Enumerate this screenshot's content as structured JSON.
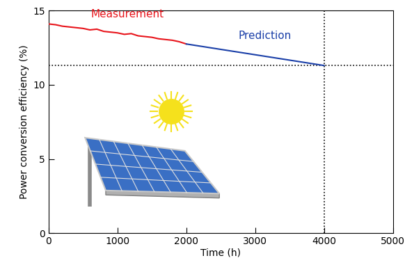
{
  "chart_data": {
    "type": "line",
    "x_label": "Time (h)",
    "y_label": "Power conversion efficiency (%)",
    "xlim": [
      0,
      5000
    ],
    "xticks": [
      0,
      1000,
      2000,
      3000,
      4000,
      5000
    ],
    "ylim": [
      0,
      15
    ],
    "yticks": [
      0,
      5,
      10,
      15
    ],
    "series": [
      {
        "name": "Measurement",
        "color": "#e8141b",
        "line_style": "solid",
        "x": [
          0,
          100,
          200,
          300,
          400,
          500,
          600,
          700,
          800,
          900,
          1000,
          1100,
          1200,
          1300,
          1400,
          1500,
          1600,
          1700,
          1800,
          1900,
          2000
        ],
        "values": [
          14.1,
          14.05,
          13.95,
          13.9,
          13.85,
          13.8,
          13.7,
          13.75,
          13.6,
          13.55,
          13.5,
          13.4,
          13.45,
          13.3,
          13.25,
          13.2,
          13.1,
          13.05,
          13.0,
          12.9,
          12.75
        ]
      },
      {
        "name": "Prediction",
        "color": "#1a3fa8",
        "line_style": "solid",
        "x": [
          2000,
          4000
        ],
        "values": [
          12.75,
          11.3
        ]
      },
      {
        "color": "#000000",
        "line_style": "dotted",
        "x": [
          4000,
          4000
        ],
        "values": [
          0,
          15
        ]
      },
      {
        "color": "#000000",
        "line_style": "dotted",
        "x": [
          0,
          5000
        ],
        "values": [
          11.3,
          11.3
        ]
      }
    ]
  }
}
